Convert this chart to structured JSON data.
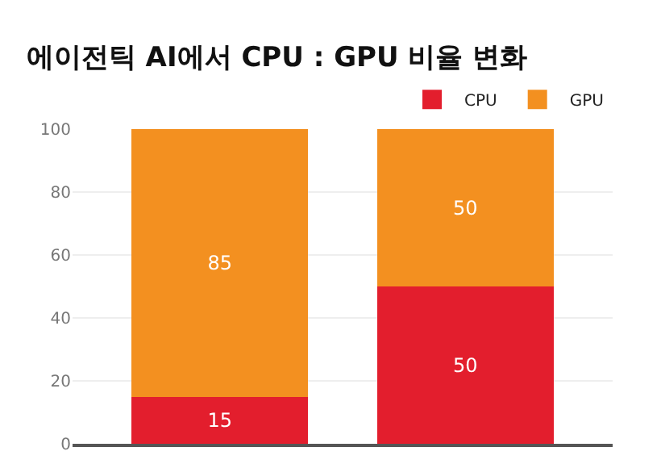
{
  "chart_data": {
    "type": "bar",
    "title": "에이전틱 AI에서 CPU : GPU 비율 변화",
    "categories": [
      null,
      null
    ],
    "stacked": true,
    "series": [
      {
        "name": "CPU",
        "color": "#e31e2d",
        "values": [
          15,
          50
        ]
      },
      {
        "name": "GPU",
        "color": "#f39020",
        "values": [
          85,
          50
        ]
      }
    ],
    "ylim": [
      0,
      100
    ],
    "yticks": [
      0,
      20,
      40,
      60,
      80,
      100
    ],
    "grid": "y",
    "legend": "top right",
    "data_labels": true
  }
}
